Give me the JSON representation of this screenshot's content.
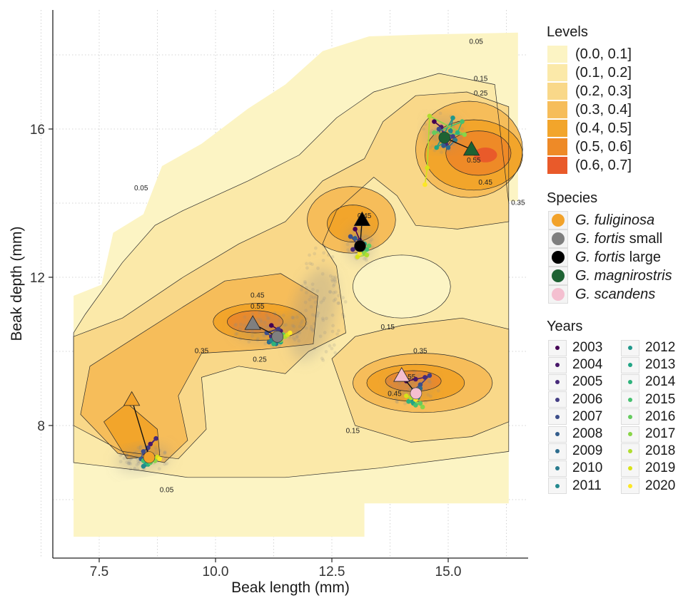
{
  "chart_data": {
    "type": "contour",
    "xlabel": "Beak length (mm)",
    "ylabel": "Beak depth (mm)",
    "xlim": [
      6.5,
      16.75
    ],
    "ylim": [
      4.7,
      19.1
    ],
    "xticks": [
      "7.5",
      "10.0",
      "12.5",
      "15.0"
    ],
    "xtick_values": [
      7.5,
      10.0,
      12.5,
      15.0
    ],
    "yticks": [
      "8",
      "12",
      "16"
    ],
    "ytick_values": [
      8,
      12,
      16
    ],
    "grid": "dotted major and minor",
    "legend_position": "right",
    "levels": {
      "title": "Levels",
      "items": [
        {
          "label": "(0.0, 0.1]",
          "color": "#fcf4c4"
        },
        {
          "label": "(0.1, 0.2]",
          "color": "#fbe9a9"
        },
        {
          "label": "(0.2, 0.3]",
          "color": "#f9d889"
        },
        {
          "label": "(0.3, 0.4]",
          "color": "#f6bd5a"
        },
        {
          "label": "(0.4, 0.5]",
          "color": "#f2a52b"
        },
        {
          "label": "(0.5, 0.6]",
          "color": "#ee8a27"
        },
        {
          "label": "(0.6, 0.7]",
          "color": "#e95a2a"
        }
      ]
    },
    "contour_labels": [
      {
        "text": "0.05",
        "x": 15.6,
        "y": 18.3
      },
      {
        "text": "0.15",
        "x": 15.7,
        "y": 17.3
      },
      {
        "text": "0.25",
        "x": 15.7,
        "y": 16.9
      },
      {
        "text": "0.55",
        "x": 15.55,
        "y": 15.1
      },
      {
        "text": "0.45",
        "x": 15.8,
        "y": 14.5
      },
      {
        "text": "0.35",
        "x": 16.5,
        "y": 13.95
      },
      {
        "text": "0.05",
        "x": 8.4,
        "y": 14.35
      },
      {
        "text": "0.45",
        "x": 13.2,
        "y": 13.6
      },
      {
        "text": "0.45",
        "x": 10.9,
        "y": 11.45
      },
      {
        "text": "0.55",
        "x": 10.9,
        "y": 11.15
      },
      {
        "text": "0.15",
        "x": 13.7,
        "y": 10.6
      },
      {
        "text": "0.35",
        "x": 9.7,
        "y": 9.95
      },
      {
        "text": "0.25",
        "x": 10.95,
        "y": 9.72
      },
      {
        "text": "0.35",
        "x": 14.4,
        "y": 9.95
      },
      {
        "text": "0.55",
        "x": 14.15,
        "y": 9.25
      },
      {
        "text": "0.45",
        "x": 13.85,
        "y": 8.8
      },
      {
        "text": "0.15",
        "x": 12.95,
        "y": 7.8
      },
      {
        "text": "0.05",
        "x": 8.95,
        "y": 6.2
      }
    ],
    "species": {
      "title": "Species",
      "items": [
        {
          "name": "G. fuliginosa",
          "suffix": "",
          "color": "#f2a22a"
        },
        {
          "name": "G. fortis",
          "suffix": " small",
          "color": "#7f7f7f"
        },
        {
          "name": "G. fortis",
          "suffix": " large",
          "color": "#000000"
        },
        {
          "name": "G. magnirostris",
          "suffix": "",
          "color": "#1e6233"
        },
        {
          "name": "G. scandens",
          "suffix": "",
          "color": "#f4bfd0"
        }
      ],
      "reference_triangles": [
        {
          "species": "G. fuliginosa",
          "x": 8.2,
          "y": 8.7
        },
        {
          "species": "G. fortis small",
          "x": 10.8,
          "y": 10.75
        },
        {
          "species": "G. fortis large",
          "x": 13.15,
          "y": 13.55
        },
        {
          "species": "G. magnirostris",
          "x": 15.5,
          "y": 15.45
        },
        {
          "species": "G. scandens",
          "x": 14.0,
          "y": 9.35
        }
      ],
      "yearly_means": [
        {
          "species": "G. fuliginosa",
          "points": [
            [
              8.5,
              7.2
            ],
            [
              8.6,
              7.5
            ],
            [
              8.72,
              7.65
            ],
            [
              8.55,
              7.4
            ],
            [
              8.45,
              7.3
            ],
            [
              8.4,
              7.1
            ],
            [
              8.5,
              6.95
            ],
            [
              8.55,
              7.05
            ],
            [
              8.45,
              6.9
            ],
            [
              8.6,
              7.1
            ],
            [
              8.5,
              7.0
            ],
            [
              8.55,
              6.95
            ],
            [
              8.45,
              7.05
            ],
            [
              8.6,
              7.0
            ],
            [
              8.7,
              7.05
            ],
            [
              8.65,
              7.1
            ],
            [
              8.75,
              7.15
            ],
            [
              8.8,
              7.1
            ]
          ]
        },
        {
          "species": "G. fortis small",
          "points": [
            [
              11.2,
              10.7
            ],
            [
              11.4,
              10.55
            ],
            [
              11.2,
              10.4
            ],
            [
              11.35,
              10.6
            ],
            [
              11.1,
              10.5
            ],
            [
              11.25,
              10.35
            ],
            [
              11.15,
              10.25
            ],
            [
              11.3,
              10.2
            ],
            [
              11.2,
              10.3
            ],
            [
              11.3,
              10.4
            ],
            [
              11.4,
              10.25
            ],
            [
              11.25,
              10.2
            ],
            [
              11.35,
              10.35
            ],
            [
              11.45,
              10.45
            ],
            [
              11.4,
              10.3
            ],
            [
              11.5,
              10.4
            ],
            [
              11.55,
              10.45
            ],
            [
              11.6,
              10.5
            ]
          ]
        },
        {
          "species": "G. fortis large",
          "points": [
            [
              13.0,
              13.3
            ],
            [
              13.1,
              13.0
            ],
            [
              12.95,
              12.75
            ],
            [
              13.05,
              12.9
            ],
            [
              12.9,
              13.1
            ],
            [
              13.0,
              13.05
            ],
            [
              13.1,
              12.95
            ],
            [
              13.15,
              12.85
            ],
            [
              13.05,
              12.8
            ],
            [
              13.15,
              12.7
            ],
            [
              13.2,
              12.9
            ],
            [
              13.1,
              12.8
            ],
            [
              13.25,
              12.75
            ],
            [
              13.3,
              12.85
            ],
            [
              13.2,
              12.65
            ],
            [
              13.25,
              12.6
            ],
            [
              13.05,
              12.55
            ],
            [
              13.1,
              12.65
            ]
          ]
        },
        {
          "species": "G. magnirostris",
          "points": [
            [
              14.7,
              16.2
            ],
            [
              14.85,
              16.05
            ],
            [
              14.95,
              15.6
            ],
            [
              15.1,
              15.8
            ],
            [
              14.8,
              16.0
            ],
            [
              14.9,
              15.55
            ],
            [
              15.0,
              15.5
            ],
            [
              15.15,
              15.7
            ],
            [
              15.05,
              15.95
            ],
            [
              15.1,
              16.3
            ],
            [
              14.75,
              15.5
            ],
            [
              15.2,
              15.9
            ],
            [
              15.3,
              16.2
            ],
            [
              14.7,
              15.9
            ],
            [
              15.35,
              15.85
            ],
            [
              14.6,
              16.35
            ],
            [
              14.55,
              14.95
            ],
            [
              14.5,
              14.5
            ]
          ]
        },
        {
          "species": "G. scandens",
          "points": [
            [
              14.1,
              9.2
            ],
            [
              14.3,
              9.25
            ],
            [
              14.5,
              9.3
            ],
            [
              14.6,
              9.35
            ],
            [
              14.4,
              9.1
            ],
            [
              14.25,
              8.95
            ],
            [
              14.4,
              9.0
            ],
            [
              14.3,
              8.85
            ],
            [
              14.2,
              8.7
            ],
            [
              14.35,
              8.75
            ],
            [
              14.25,
              8.6
            ],
            [
              14.15,
              8.65
            ],
            [
              14.3,
              8.55
            ],
            [
              14.4,
              8.6
            ],
            [
              14.45,
              8.5
            ],
            [
              14.2,
              8.75
            ],
            [
              14.1,
              8.8
            ],
            [
              14.3,
              8.7
            ]
          ]
        }
      ]
    },
    "years": {
      "title": "Years",
      "items": [
        {
          "label": "2003",
          "color": "#440154"
        },
        {
          "label": "2004",
          "color": "#481769"
        },
        {
          "label": "2005",
          "color": "#472a7a"
        },
        {
          "label": "2006",
          "color": "#433d84"
        },
        {
          "label": "2007",
          "color": "#3d4e8a"
        },
        {
          "label": "2008",
          "color": "#355e8d"
        },
        {
          "label": "2009",
          "color": "#2e6d8e"
        },
        {
          "label": "2010",
          "color": "#297b8e"
        },
        {
          "label": "2011",
          "color": "#23898e"
        },
        {
          "label": "2012",
          "color": "#1f978b"
        },
        {
          "label": "2013",
          "color": "#21a585"
        },
        {
          "label": "2014",
          "color": "#2eb37c"
        },
        {
          "label": "2015",
          "color": "#46c06f"
        },
        {
          "label": "2016",
          "color": "#65cb5e"
        },
        {
          "label": "2017",
          "color": "#89d548"
        },
        {
          "label": "2018",
          "color": "#b0dd2f"
        },
        {
          "label": "2019",
          "color": "#d8e219"
        },
        {
          "label": "2020",
          "color": "#fde725"
        }
      ]
    }
  }
}
